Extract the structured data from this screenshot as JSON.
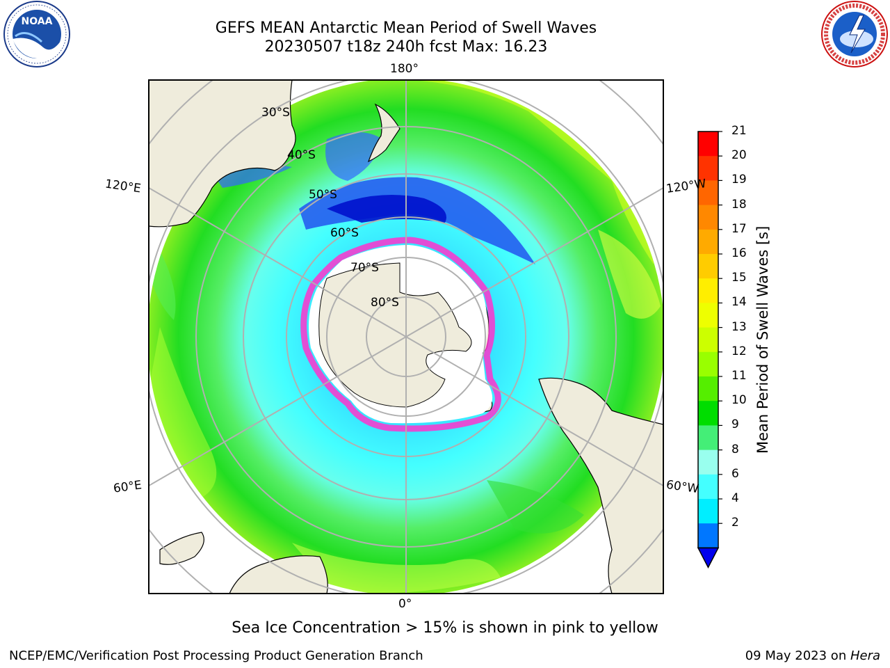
{
  "title": {
    "line1": "GEFS MEAN Antarctic Mean Period of Swell Waves",
    "line2": "20230507 t18z 240h fcst   Max: 16.23"
  },
  "logos": {
    "noaa": {
      "text": "NOAA",
      "icon": "noaa-logo-icon"
    },
    "nws": {
      "text": "NATIONAL WEATHER SERVICE",
      "icon": "nws-logo-icon"
    }
  },
  "map": {
    "projection": "south-polar-stereographic",
    "longitude_labels": [
      "180°",
      "120°E",
      "120°W",
      "60°E",
      "60°W",
      "0°"
    ],
    "latitude_labels": [
      "30°S",
      "40°S",
      "50°S",
      "60°S",
      "70°S",
      "80°S"
    ],
    "land_color": "#efecdc",
    "sea_ice_color": "#ff33cc"
  },
  "colorbar": {
    "label": "Mean Period of Swell Waves [s]",
    "ticks": [
      "21",
      "20",
      "19",
      "18",
      "17",
      "16",
      "15",
      "14",
      "13",
      "12",
      "11",
      "10",
      "9",
      "8",
      "6",
      "4",
      "2"
    ],
    "colors": [
      "#ff0000",
      "#ff3300",
      "#ff6600",
      "#ff8800",
      "#ffaa00",
      "#ffcc00",
      "#ffee00",
      "#eeff00",
      "#ccff00",
      "#99ff00",
      "#55ee00",
      "#00dd00",
      "#44ee77",
      "#99ffee",
      "#44ffff",
      "#00eeff",
      "#0077ff",
      "#0000ee"
    ]
  },
  "note": "Sea Ice Concentration > 15% is shown in pink to yellow",
  "footer": {
    "left": "NCEP/EMC/Verification Post Processing Product Generation Branch",
    "date": "09 May 2023 on ",
    "host": "Hera"
  }
}
